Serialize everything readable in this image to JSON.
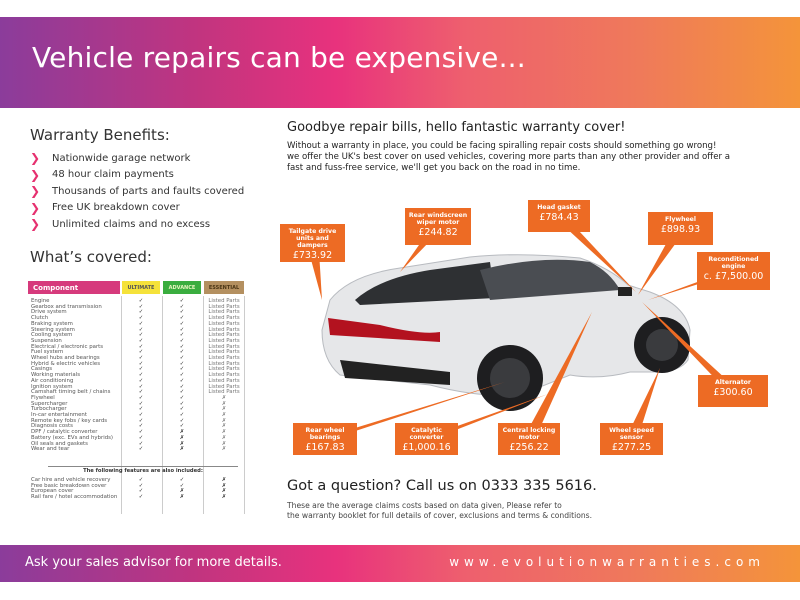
{
  "header": {
    "title": "Vehicle repairs can be expensive..."
  },
  "benefits": {
    "title": "Warranty Benefits:",
    "items": [
      "Nationwide garage network",
      "48 hour claim payments",
      "Thousands of parts and faults covered",
      "Free UK breakdown cover",
      "Unlimited claims and no excess"
    ]
  },
  "covered": {
    "title": "What’s covered:",
    "table": {
      "headers": [
        "Component",
        "ULTIMATE",
        "ADVANCE",
        "ESSENTIAL"
      ],
      "header_colors": [
        "#d63a7c",
        "#f5e23a",
        "#3aad3f",
        "#b49060"
      ],
      "components": [
        "Engine",
        "Gearbox and transmission",
        "Drive system",
        "Clutch",
        "Braking system",
        "Steering system",
        "Cooling system",
        "Suspension",
        "Electrical / electronic parts",
        "Fuel system",
        "Wheel hubs and bearings",
        "Hybrid & electric vehicles",
        "Casings",
        "Working materials",
        "Air conditioning",
        "Ignition system",
        "Camshaft timing belt / chains",
        "Flywheel",
        "Supercharger",
        "Turbocharger",
        "In-car entertainment",
        "Remote key fobs / key cards",
        "Diagnosis costs",
        "DPF / catalytic converter",
        "Battery (exc. EVs and hybrids)",
        "Oil seals and gaskets",
        "Wear and tear"
      ],
      "ultimate": [
        "✓",
        "✓",
        "✓",
        "✓",
        "✓",
        "✓",
        "✓",
        "✓",
        "✓",
        "✓",
        "✓",
        "✓",
        "✓",
        "✓",
        "✓",
        "✓",
        "✓",
        "✓",
        "✓",
        "✓",
        "✓",
        "✓",
        "✓",
        "✓",
        "✓",
        "✓",
        "✓"
      ],
      "advance": [
        "✓",
        "✓",
        "✓",
        "✓",
        "✓",
        "✓",
        "✓",
        "✓",
        "✓",
        "✓",
        "✓",
        "✓",
        "✓",
        "✓",
        "✓",
        "✓",
        "✓",
        "✓",
        "✓",
        "✓",
        "✓",
        "✓",
        "✓",
        "✗",
        "✗",
        "✗",
        "✗"
      ],
      "essential": [
        "Listed Parts",
        "Listed Parts",
        "Listed Parts",
        "Listed Parts",
        "Listed Parts",
        "Listed Parts",
        "Listed Parts",
        "Listed Parts",
        "Listed Parts",
        "Listed Parts",
        "Listed Parts",
        "Listed Parts",
        "Listed Parts",
        "Listed Parts",
        "Listed Parts",
        "Listed Parts",
        "Listed Parts",
        "✗",
        "✗",
        "✗",
        "✗",
        "✗",
        "✗",
        "✗",
        "✗",
        "✗",
        "✗"
      ],
      "extras_title": "The following features are also included:",
      "extras": [
        "Car hire and vehicle recovery",
        "Free basic breakdown cover",
        "European cover",
        "Rail fare / hotel accommodation"
      ],
      "extras_ultimate": [
        "✓",
        "✓",
        "✓",
        "✓"
      ],
      "extras_advance": [
        "✓",
        "✓",
        "✗",
        "✗"
      ],
      "extras_essential": [
        "✗",
        "✗",
        "✗",
        "✗"
      ]
    }
  },
  "main": {
    "headline": "Goodbye repair bills, hello fantastic warranty cover!",
    "body": [
      "Without a warranty in place, you could be facing spiralling repair costs should something go wrong!",
      "we offer the UK's best cover on used vehicles, covering more parts than any other provider and offer a",
      "fast and fuss-free service, we'll get you back on the road in no time."
    ],
    "callouts": [
      {
        "label": "Tailgate drive units and dampers",
        "price": "£733.92"
      },
      {
        "label": "Rear windscreen wiper motor",
        "price": "£244.82"
      },
      {
        "label": "Head gasket",
        "price": "£784.43"
      },
      {
        "label": "Flywheel",
        "price": "£898.93"
      },
      {
        "label": "Reconditioned engine",
        "price": "c. £7,500.00"
      },
      {
        "label": "Alternator",
        "price": "£300.60"
      },
      {
        "label": "Rear wheel bearings",
        "price": "£167.83"
      },
      {
        "label": "Catalytic converter",
        "price": "£1,000.16"
      },
      {
        "label": "Central locking motor",
        "price": "£256.22"
      },
      {
        "label": "Wheel speed sensor",
        "price": "£277.25"
      }
    ],
    "question": "Got a question? Call us on 0333 335 5616.",
    "note": [
      "These are the average claims costs based on data given, Please refer to",
      "the warranty booklet for full details of cover, exclusions and terms & conditions."
    ],
    "callout_color": "#ed6b24"
  },
  "footer": {
    "left": "Ask your sales advisor for more details.",
    "right": "www.evolutionwarranties.com"
  }
}
